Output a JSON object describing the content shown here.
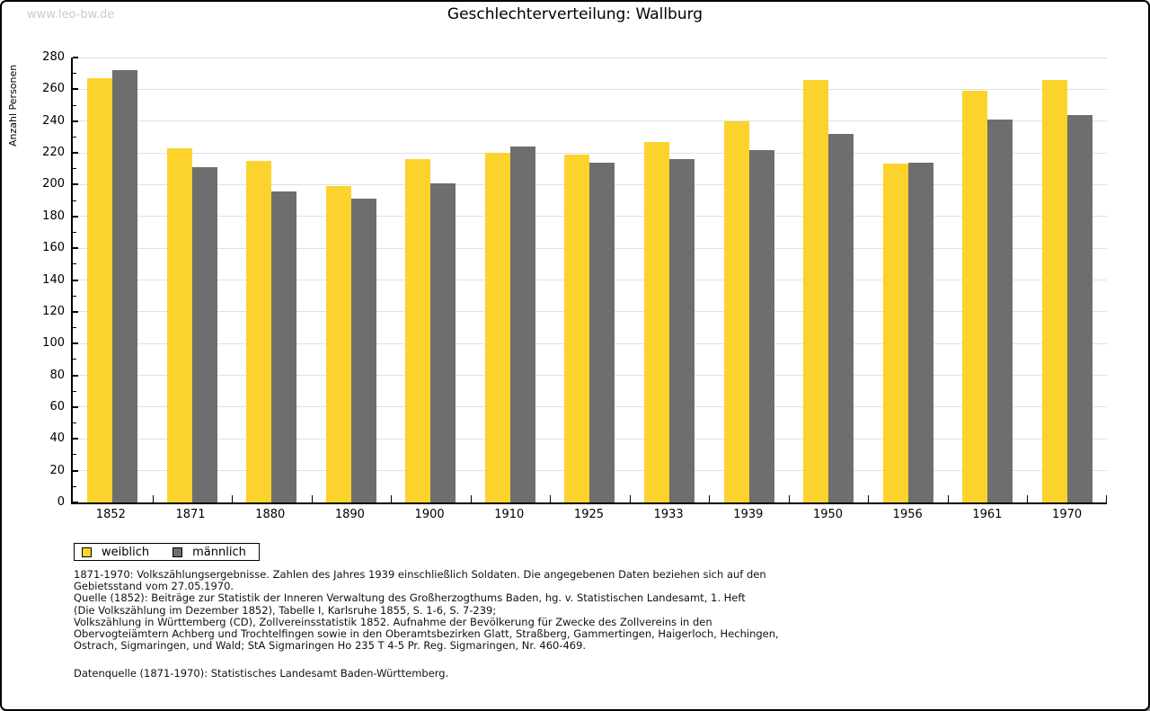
{
  "watermark": "www.leo-bw.de",
  "header": {
    "title": "Geschlechterverteilung: Wallburg"
  },
  "chart_data": {
    "type": "bar",
    "title": "Geschlechterverteilung: Wallburg",
    "ylabel": "Anzahl Personen",
    "xlabel": "",
    "categories": [
      "1852",
      "1871",
      "1880",
      "1890",
      "1900",
      "1910",
      "1925",
      "1933",
      "1939",
      "1950",
      "1956",
      "1961",
      "1970"
    ],
    "series": [
      {
        "name": "weiblich",
        "color": "#FCD32D",
        "values": [
          267,
          223,
          215,
          199,
          216,
          220,
          219,
          227,
          240,
          266,
          213,
          259,
          266
        ]
      },
      {
        "name": "männlich",
        "color": "#6E6E6E",
        "values": [
          272,
          211,
          196,
          191,
          201,
          224,
          214,
          216,
          222,
          232,
          214,
          241,
          244
        ]
      }
    ],
    "ylim": [
      0,
      280
    ],
    "ytick_step": 20,
    "minor_tick_step": 10,
    "grid": true,
    "gridline_color": "#E0E0E0",
    "legend_position": "below-left"
  },
  "legend": {
    "items": [
      {
        "label": "weiblich",
        "color": "#FCD32D"
      },
      {
        "label": "männlich",
        "color": "#6E6E6E"
      }
    ]
  },
  "footer": {
    "lines": [
      "1871-1970: Volkszählungsergebnisse. Zahlen des Jahres 1939 einschließlich Soldaten. Die angegebenen Daten beziehen sich auf den",
      "Gebietsstand vom 27.05.1970.",
      "Quelle (1852): Beiträge zur Statistik der Inneren Verwaltung des Großherzogthums Baden, hg. v. Statistischen Landesamt, 1. Heft",
      "(Die Volkszählung im Dezember 1852), Tabelle I, Karlsruhe 1855, S. 1-6, S. 7-239;",
      "Volkszählung in Württemberg (CD), Zollvereinsstatistik 1852. Aufnahme der Bevölkerung für Zwecke des Zollvereins in den",
      "Obervogteiämtern Achberg und Trochtelfingen sowie in den Oberamtsbezirken Glatt, Straßberg, Gammertingen, Haigerloch, Hechingen,",
      "Ostrach, Sigmaringen, und Wald; StA Sigmaringen Ho 235 T 4-5 Pr. Reg. Sigmaringen, Nr. 460-469."
    ],
    "datasource": "Datenquelle (1871-1970): Statistisches Landesamt Baden-Württemberg."
  }
}
